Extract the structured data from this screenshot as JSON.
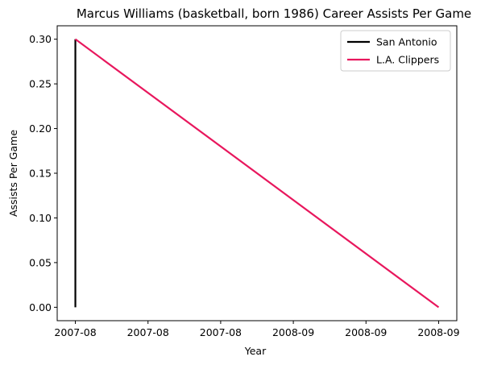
{
  "chart_data": {
    "type": "line",
    "title": "Marcus Williams (basketball, born 1986) Career Assists Per Game",
    "xlabel": "Year",
    "ylabel": "Assists Per Game",
    "ylim": [
      -0.015,
      0.315
    ],
    "y_ticks": [
      "0.00",
      "0.05",
      "0.10",
      "0.15",
      "0.20",
      "0.25",
      "0.30"
    ],
    "y_tick_values": [
      0,
      0.05,
      0.1,
      0.15,
      0.2,
      0.25,
      0.3
    ],
    "x_ticks": [
      "2007-08",
      "2007-08",
      "2007-08",
      "2008-09",
      "2008-09",
      "2008-09"
    ],
    "x_tick_values": [
      0,
      0.2,
      0.4,
      0.6,
      0.8,
      1.0
    ],
    "xlim": [
      -0.05,
      1.05
    ],
    "grid": false,
    "legend_position": "top-right",
    "series": [
      {
        "name": "San Antonio",
        "color": "#000000",
        "x": [
          0,
          0
        ],
        "y": [
          0.0,
          0.3
        ]
      },
      {
        "name": "L.A. Clippers",
        "color": "#e8175d",
        "x": [
          0,
          1
        ],
        "y": [
          0.3,
          0.0
        ]
      }
    ]
  }
}
